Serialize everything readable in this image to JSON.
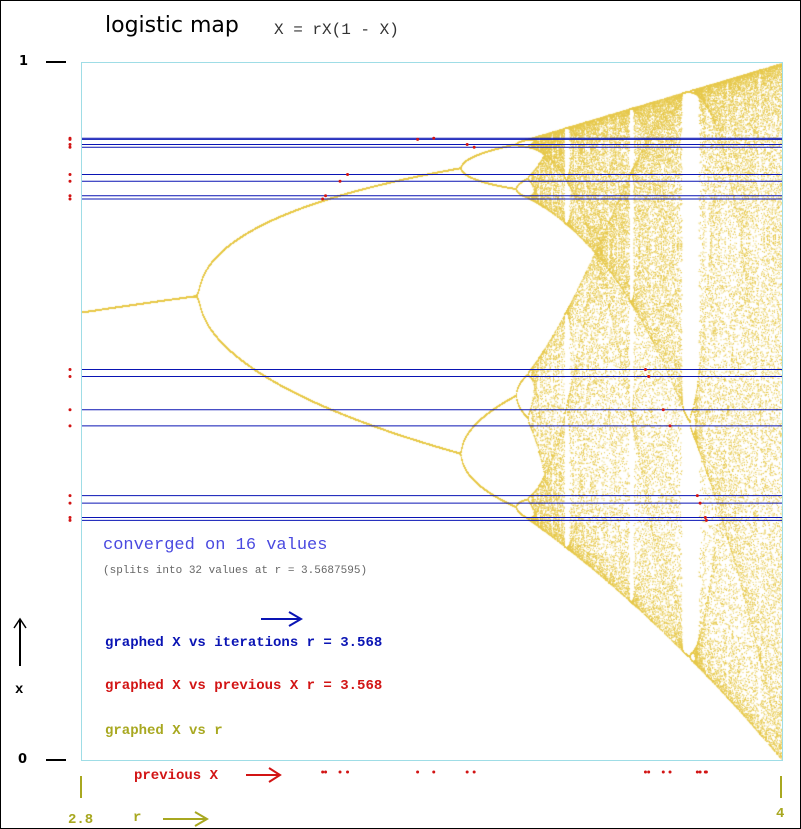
{
  "header": {
    "title": "logistic map",
    "formula": "X = rX(1 - X)"
  },
  "status": {
    "converged": "converged on 16 values",
    "splits": "(splits into 32 values at r = 3.5687595)"
  },
  "legend": {
    "iterations": "graphed  X vs iterations   r = 3.568",
    "previous": "graphed  X vs previous X   r = 3.568",
    "vs_r": "graphed  X vs r"
  },
  "axes": {
    "y_top": "1",
    "y_bottom": "0",
    "y_label": "x",
    "x_left": "2.8",
    "x_right": "4",
    "x_label": "r",
    "prev_label": "previous X"
  },
  "colors": {
    "iterations": "#0a14b4",
    "previous": "#d21414",
    "bifurcation": "#e6c84b",
    "axis_r": "#a8a820",
    "border": "#9fdde6"
  },
  "chart_data": {
    "type": "scatter",
    "title": "logistic map",
    "equation": "X = rX(1 - X)",
    "xlabel": "r",
    "ylabel": "x",
    "xlim": [
      2.8,
      4
    ],
    "ylim": [
      0,
      1
    ],
    "x_ticks": [
      "2.8",
      "4"
    ],
    "y_ticks": [
      "0",
      "1"
    ],
    "selected_r": 3.568,
    "converged_count": 16,
    "next_split_r": 3.5687595,
    "series": [
      {
        "name": "X vs iterations",
        "kind": "horizontal lines at attractor values"
      },
      {
        "name": "X vs previous X",
        "kind": "points (previous X, X)"
      },
      {
        "name": "X vs r",
        "kind": "bifurcation diagram"
      }
    ]
  }
}
